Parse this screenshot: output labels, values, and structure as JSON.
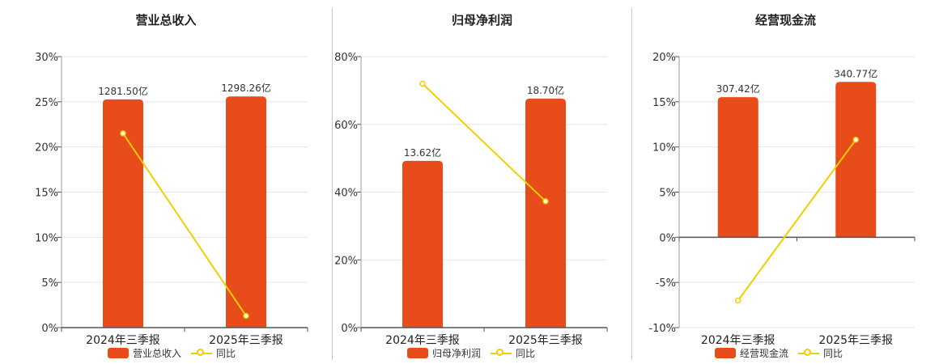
{
  "colors": {
    "bar": "#e84c1a",
    "line": "#f2cf00",
    "grid": "#e6e6e6",
    "axis": "#555555"
  },
  "legend": {
    "line_label": "同比"
  },
  "chart_data": [
    {
      "type": "bar",
      "title": "营业总收入",
      "categories": [
        "2024年三季报",
        "2025年三季报"
      ],
      "bar_values": [
        1281.5,
        1298.26
      ],
      "bar_labels": [
        "1281.50亿",
        "1298.26亿"
      ],
      "bar_name": "营业总收入",
      "line_name": "同比",
      "line_values": [
        21.5,
        1.3
      ],
      "ylim": [
        0,
        30
      ],
      "yticks": [
        0,
        5,
        10,
        15,
        20,
        25,
        30
      ],
      "ytick_labels": [
        "0%",
        "5%",
        "10%",
        "15%",
        "20%",
        "25%",
        "30%"
      ],
      "grid": true,
      "legend_position": "bottom"
    },
    {
      "type": "bar",
      "title": "归母净利润",
      "categories": [
        "2024年三季报",
        "2025年三季报"
      ],
      "bar_values": [
        13.62,
        18.7
      ],
      "bar_labels": [
        "13.62亿",
        "18.70亿"
      ],
      "bar_name": "归母净利润",
      "line_name": "同比",
      "line_values": [
        72,
        37.3
      ],
      "ylim": [
        0,
        80
      ],
      "yticks": [
        0,
        20,
        40,
        60,
        80
      ],
      "ytick_labels": [
        "0%",
        "20%",
        "40%",
        "60%",
        "80%"
      ],
      "grid": true,
      "legend_position": "bottom"
    },
    {
      "type": "bar",
      "title": "经营现金流",
      "categories": [
        "2024年三季报",
        "2025年三季报"
      ],
      "bar_values": [
        307.42,
        340.77
      ],
      "bar_labels": [
        "307.42亿",
        "340.77亿"
      ],
      "bar_name": "经营现金流",
      "line_name": "同比",
      "line_values": [
        -7.0,
        10.8
      ],
      "ylim": [
        -10,
        20
      ],
      "yticks": [
        -10,
        -5,
        0,
        5,
        10,
        15,
        20
      ],
      "ytick_labels": [
        "-10%",
        "-5%",
        "0%",
        "5%",
        "10%",
        "15%",
        "20%"
      ],
      "grid": true,
      "legend_position": "bottom"
    }
  ]
}
